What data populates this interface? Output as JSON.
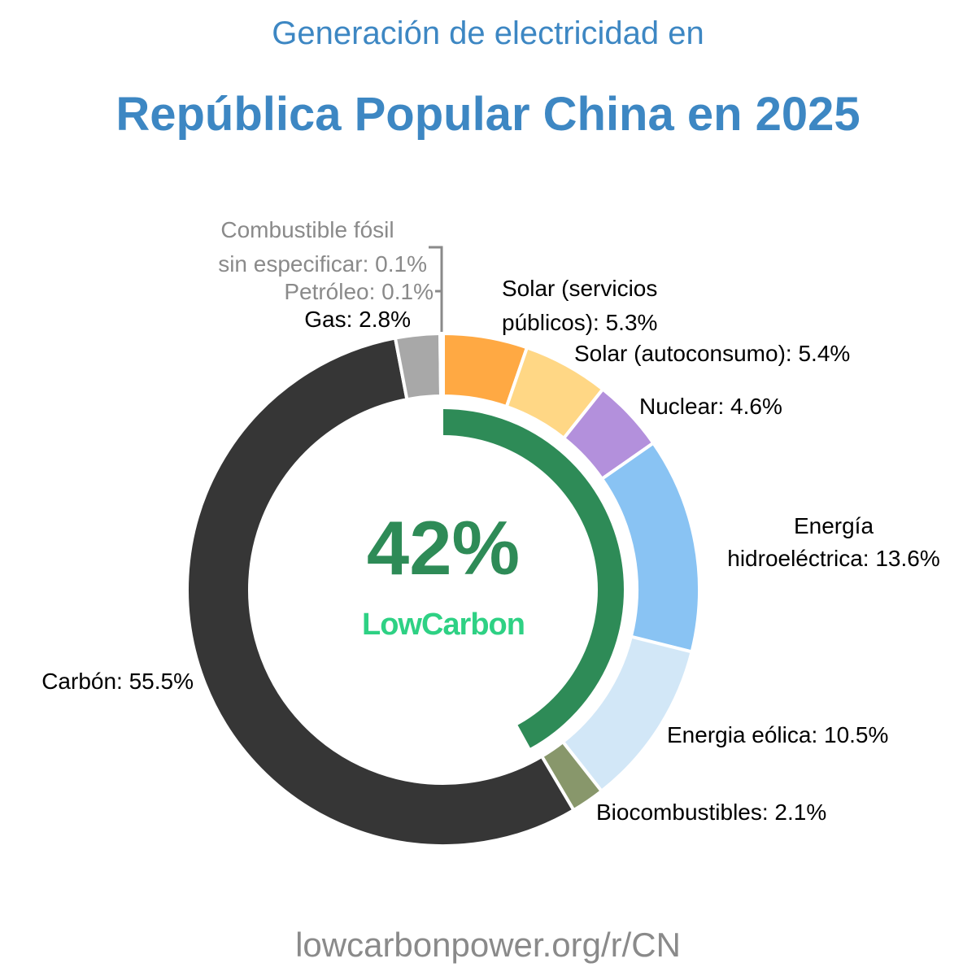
{
  "chart_data": {
    "type": "pie",
    "subtitle": "Generación de electricidad en",
    "title": "República Popular China en 2025",
    "center_value": "42%",
    "low_carbon_share": 42,
    "logo_text": "LowCarbon",
    "footer": "lowcarbonpower.org/r/CN",
    "slices": [
      {
        "name": "Solar (servicios públicos)",
        "label": [
          "Solar (servicios",
          "públicos): 5.3%"
        ],
        "value": 5.3,
        "color": "#ffa943"
      },
      {
        "name": "Solar (autoconsumo)",
        "label": [
          "Solar (autoconsumo): 5.4%"
        ],
        "value": 5.4,
        "color": "#ffd785"
      },
      {
        "name": "Nuclear",
        "label": [
          "Nuclear: 4.6%"
        ],
        "value": 4.6,
        "color": "#b390dc"
      },
      {
        "name": "Energía hidroeléctrica",
        "label": [
          "Energía",
          "hidroeléctrica: 13.6%"
        ],
        "value": 13.6,
        "color": "#89c3f3"
      },
      {
        "name": "Energia eólica",
        "label": [
          "Energia eólica: 10.5%"
        ],
        "value": 10.5,
        "color": "#d2e7f7"
      },
      {
        "name": "Biocombustibles",
        "label": [
          "Biocombustibles: 2.1%"
        ],
        "value": 2.1,
        "color": "#88976b"
      },
      {
        "name": "Carbón",
        "label": [
          "Carbón: 55.5%"
        ],
        "value": 55.5,
        "color": "#363636"
      },
      {
        "name": "Gas",
        "label": [
          "Gas: 2.8%"
        ],
        "value": 2.8,
        "color": "#a8a8a8"
      },
      {
        "name": "Petróleo",
        "label": [
          "Petróleo: 0.1%"
        ],
        "value": 0.1,
        "color": "#8a8a8a"
      },
      {
        "name": "Combustible fósil sin especificar",
        "label": [
          "Combustible fósil",
          "sin especificar: 0.1%"
        ],
        "value": 0.1,
        "color": "#8a8a8a"
      }
    ],
    "colors": {
      "title": "#3d87c3",
      "low_carbon": "#2e8b57",
      "logo": "#2ed184",
      "muted_label": "#8a8a8a",
      "footer": "#8a8a8a"
    }
  }
}
